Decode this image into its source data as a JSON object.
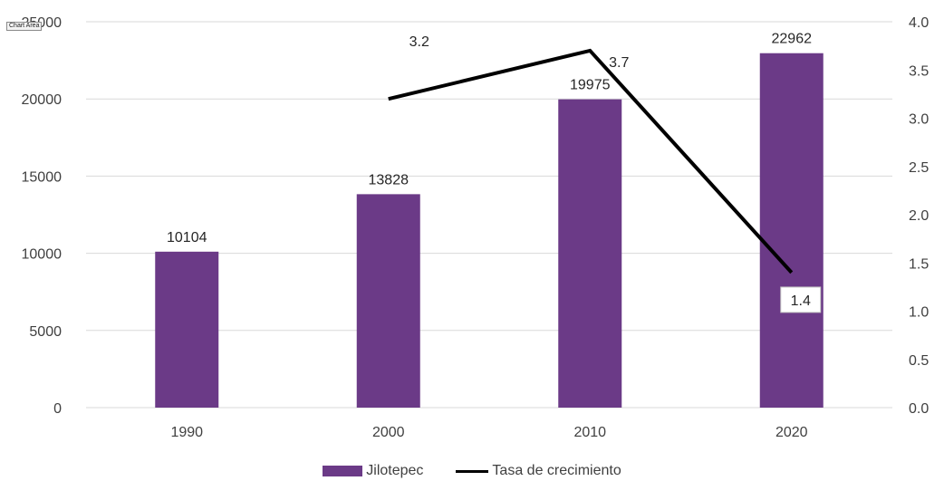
{
  "chart_data": {
    "type": "bar+line",
    "categories": [
      "1990",
      "2000",
      "2010",
      "2020"
    ],
    "series": [
      {
        "name": "Jilotepec",
        "type": "bar",
        "axis": "left",
        "values": [
          10104,
          13828,
          19975,
          22962
        ],
        "labels": [
          "10104",
          "13828",
          "19975",
          "22962"
        ],
        "color": "#6b3a87"
      },
      {
        "name": "Tasa de crecimiento",
        "type": "line",
        "axis": "right",
        "values": [
          null,
          3.2,
          3.7,
          1.4
        ],
        "labels": [
          "",
          "3.2",
          "3.7",
          "1.4"
        ],
        "color": "#000000"
      }
    ],
    "y_left": {
      "ylim": [
        0,
        25000
      ],
      "ticks": [
        0,
        5000,
        10000,
        15000,
        20000,
        25000
      ],
      "tick_labels": [
        "0",
        "5000",
        "10000",
        "15000",
        "20000",
        "25000"
      ]
    },
    "y_right": {
      "ylim": [
        0,
        4.0
      ],
      "ticks": [
        0,
        0.5,
        1.0,
        1.5,
        2.0,
        2.5,
        3.0,
        3.5,
        4.0
      ],
      "tick_labels": [
        "0.0",
        "0.5",
        "1.0",
        "1.5",
        "2.0",
        "2.5",
        "3.0",
        "3.5",
        "4.0"
      ]
    },
    "grid": true,
    "legend_position": "bottom",
    "legend": [
      "Jilotepec",
      "Tasa de crecimiento"
    ]
  },
  "tooltip": {
    "text": "Chart Area"
  },
  "colors": {
    "grid": "#d9d9d9",
    "axis_text": "#404040",
    "label_text": "#262626"
  }
}
